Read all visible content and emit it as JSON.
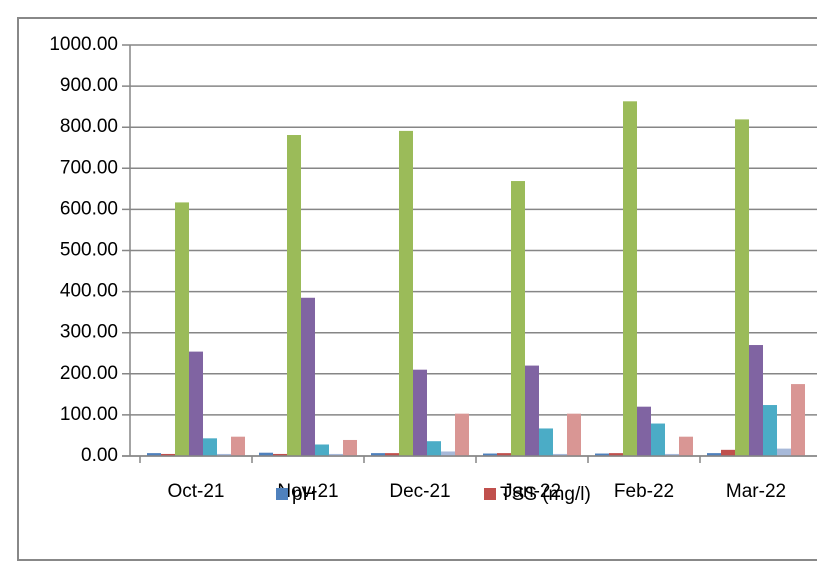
{
  "chart_data": {
    "type": "bar",
    "categories": [
      "Oct-21",
      "Nov-21",
      "Dec-21",
      "Jan-22",
      "Feb-22",
      "Mar-22"
    ],
    "series": [
      {
        "name": "pH",
        "color": "#4f81bd",
        "values": [
          7,
          8,
          7,
          6,
          6,
          7
        ]
      },
      {
        "name": "TSS (mg/l)",
        "color": "#c0504d",
        "values": [
          5,
          5,
          7,
          7,
          7,
          15
        ]
      },
      {
        "color": "#9bbb59",
        "values": [
          617,
          781,
          791,
          669,
          863,
          819
        ]
      },
      {
        "color": "#8064a2",
        "values": [
          254,
          385,
          210,
          220,
          120,
          270
        ]
      },
      {
        "color": "#4bacc6",
        "values": [
          43,
          28,
          36,
          67,
          79,
          124
        ]
      },
      {
        "color": "#a7b9d9",
        "values": [
          5,
          5,
          11,
          5,
          5,
          18
        ]
      },
      {
        "color": "#d99694",
        "values": [
          47,
          39,
          103,
          103,
          47,
          175
        ]
      }
    ],
    "ylim": [
      0,
      1000
    ],
    "yticks": [
      {
        "value": 0,
        "label": "0.00"
      },
      {
        "value": 100,
        "label": "100.00"
      },
      {
        "value": 200,
        "label": "200.00"
      },
      {
        "value": 300,
        "label": "300.00"
      },
      {
        "value": 400,
        "label": "400.00"
      },
      {
        "value": 500,
        "label": "500.00"
      },
      {
        "value": 600,
        "label": "600.00"
      },
      {
        "value": 700,
        "label": "700.00"
      },
      {
        "value": 800,
        "label": "800.00"
      },
      {
        "value": 900,
        "label": "900.00"
      },
      {
        "value": 1000,
        "label": "1000.00"
      }
    ],
    "grid": true,
    "legend": "bottom"
  }
}
